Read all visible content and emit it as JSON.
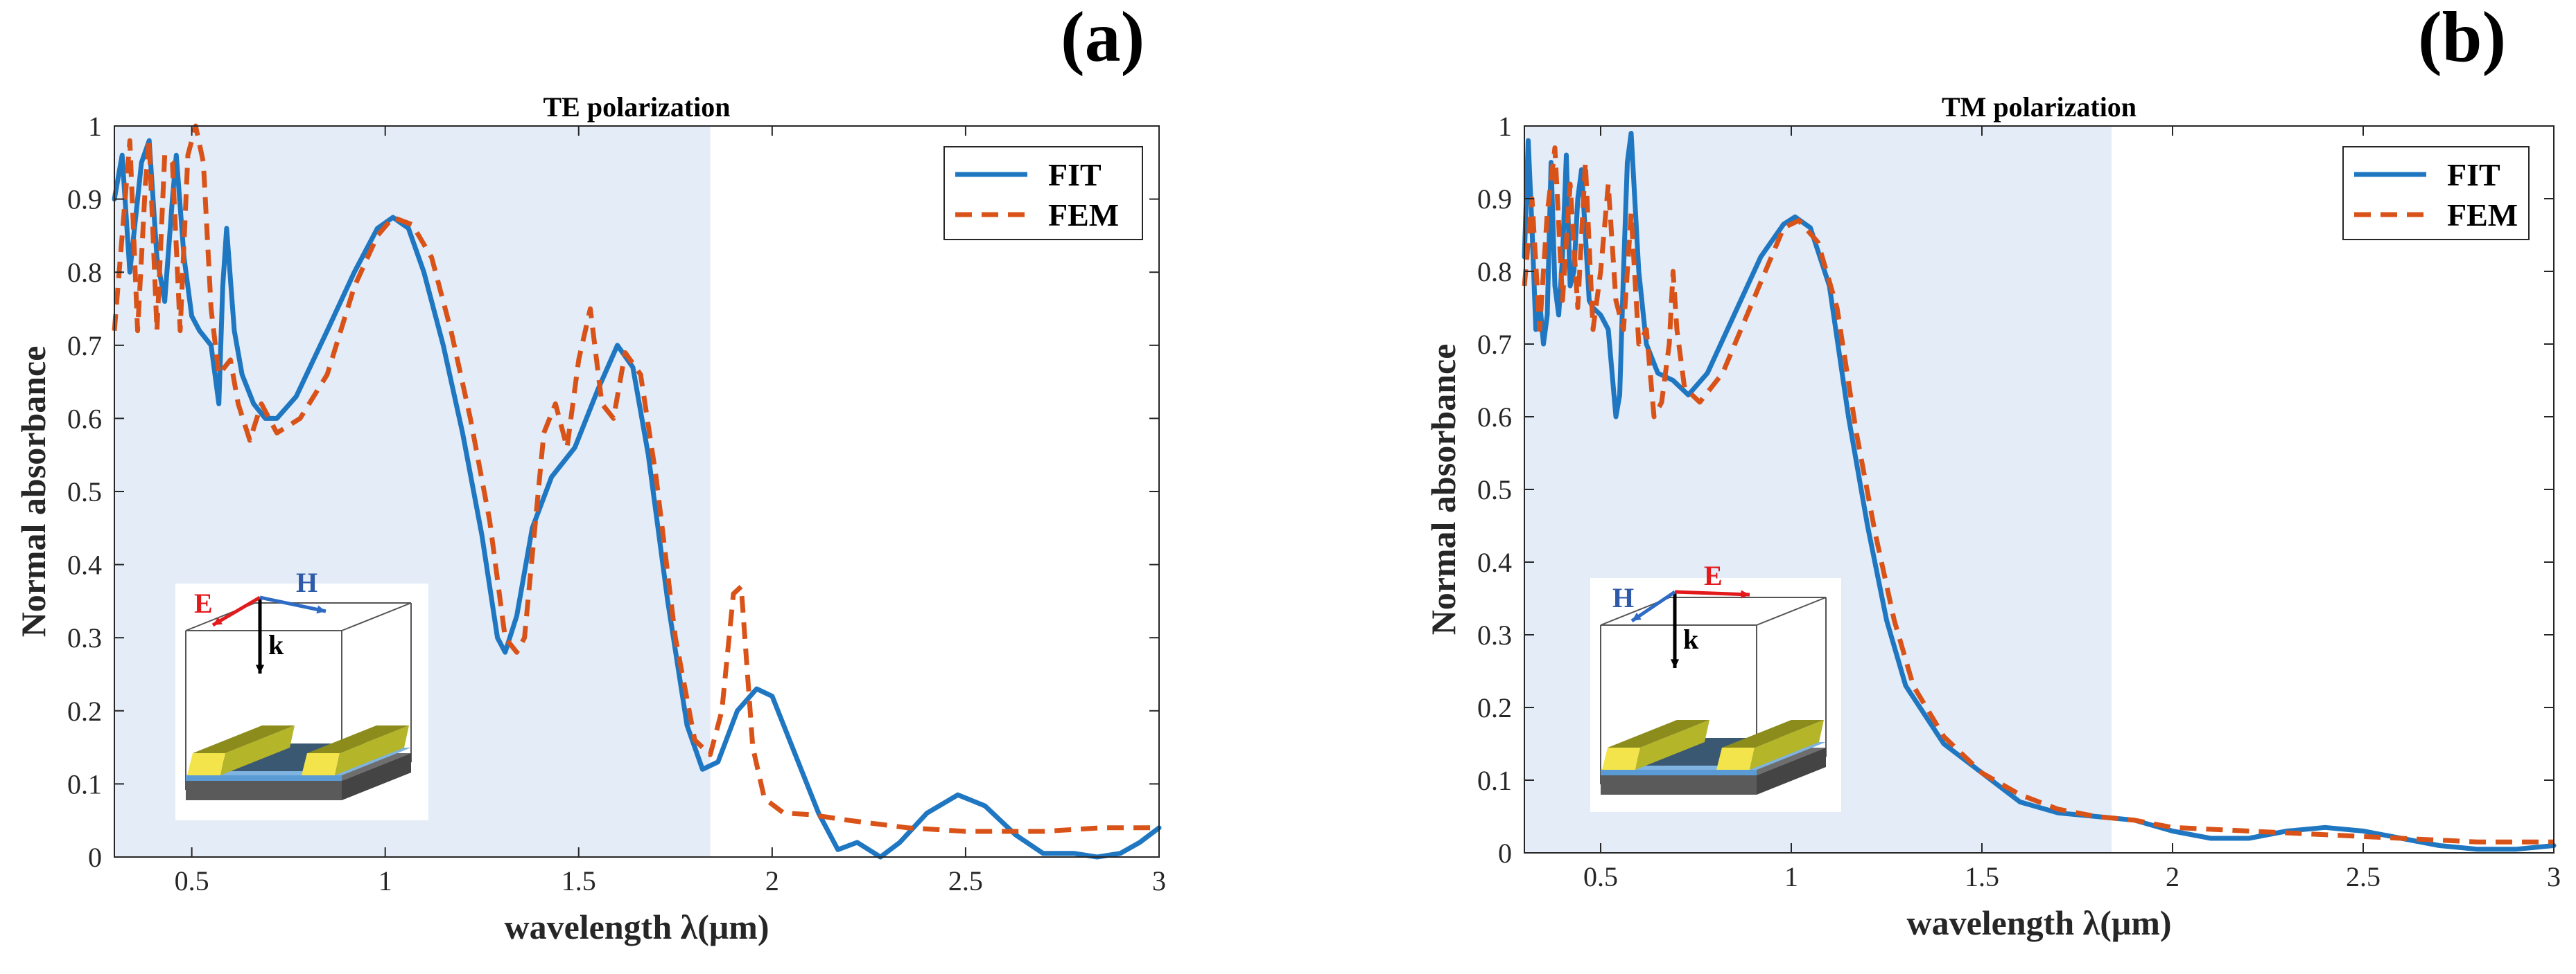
{
  "chart_data": [
    {
      "type": "line",
      "panel_label": "(a)",
      "title": "TE polarization",
      "xlabel": "wavelength λ(μm)",
      "ylabel": "Normal absorbance",
      "xlim": [
        0.3,
        3.0
      ],
      "ylim": [
        0,
        1
      ],
      "xticks": [
        0.5,
        1,
        1.5,
        2,
        2.5,
        3
      ],
      "xtick_labels": [
        "0.5",
        "1",
        "1.5",
        "2",
        "2.5",
        "3"
      ],
      "yticks": [
        0,
        0.1,
        0.2,
        0.3,
        0.4,
        0.5,
        0.6,
        0.7,
        0.8,
        0.9,
        1
      ],
      "ytick_labels": [
        "0",
        "0.1",
        "0.2",
        "0.3",
        "0.4",
        "0.5",
        "0.6",
        "0.7",
        "0.8",
        "0.9",
        "1"
      ],
      "shaded_region": [
        0.3,
        1.84
      ],
      "legend": {
        "position": "top-right"
      },
      "inset": {
        "labels": [
          "E",
          "H",
          "k"
        ]
      },
      "series": [
        {
          "name": "FIT",
          "color": "#1f77c2",
          "style": "solid",
          "points": [
            [
              0.3,
              0.9
            ],
            [
              0.32,
              0.96
            ],
            [
              0.34,
              0.8
            ],
            [
              0.37,
              0.95
            ],
            [
              0.39,
              0.98
            ],
            [
              0.41,
              0.82
            ],
            [
              0.43,
              0.76
            ],
            [
              0.45,
              0.9
            ],
            [
              0.46,
              0.96
            ],
            [
              0.48,
              0.82
            ],
            [
              0.5,
              0.74
            ],
            [
              0.52,
              0.72
            ],
            [
              0.55,
              0.7
            ],
            [
              0.57,
              0.62
            ],
            [
              0.58,
              0.78
            ],
            [
              0.59,
              0.86
            ],
            [
              0.61,
              0.72
            ],
            [
              0.63,
              0.66
            ],
            [
              0.66,
              0.62
            ],
            [
              0.69,
              0.6
            ],
            [
              0.72,
              0.6
            ],
            [
              0.77,
              0.63
            ],
            [
              0.85,
              0.72
            ],
            [
              0.92,
              0.8
            ],
            [
              0.98,
              0.86
            ],
            [
              1.02,
              0.875
            ],
            [
              1.06,
              0.86
            ],
            [
              1.1,
              0.8
            ],
            [
              1.15,
              0.7
            ],
            [
              1.2,
              0.58
            ],
            [
              1.25,
              0.44
            ],
            [
              1.29,
              0.3
            ],
            [
              1.31,
              0.28
            ],
            [
              1.34,
              0.33
            ],
            [
              1.38,
              0.45
            ],
            [
              1.43,
              0.52
            ],
            [
              1.49,
              0.56
            ],
            [
              1.55,
              0.64
            ],
            [
              1.6,
              0.7
            ],
            [
              1.64,
              0.67
            ],
            [
              1.68,
              0.55
            ],
            [
              1.73,
              0.35
            ],
            [
              1.78,
              0.18
            ],
            [
              1.82,
              0.12
            ],
            [
              1.86,
              0.13
            ],
            [
              1.91,
              0.2
            ],
            [
              1.96,
              0.23
            ],
            [
              2.0,
              0.22
            ],
            [
              2.06,
              0.14
            ],
            [
              2.12,
              0.06
            ],
            [
              2.17,
              0.01
            ],
            [
              2.22,
              0.02
            ],
            [
              2.28,
              0.0
            ],
            [
              2.33,
              0.02
            ],
            [
              2.4,
              0.06
            ],
            [
              2.48,
              0.085
            ],
            [
              2.55,
              0.07
            ],
            [
              2.63,
              0.03
            ],
            [
              2.7,
              0.005
            ],
            [
              2.78,
              0.005
            ],
            [
              2.84,
              0.0
            ],
            [
              2.9,
              0.005
            ],
            [
              2.95,
              0.02
            ],
            [
              3.0,
              0.04
            ]
          ]
        },
        {
          "name": "FEM",
          "color": "#d95319",
          "style": "dashed",
          "points": [
            [
              0.3,
              0.72
            ],
            [
              0.32,
              0.85
            ],
            [
              0.34,
              0.98
            ],
            [
              0.36,
              0.72
            ],
            [
              0.38,
              0.92
            ],
            [
              0.39,
              0.98
            ],
            [
              0.41,
              0.72
            ],
            [
              0.43,
              0.96
            ],
            [
              0.45,
              0.95
            ],
            [
              0.47,
              0.72
            ],
            [
              0.49,
              0.96
            ],
            [
              0.51,
              1.0
            ],
            [
              0.53,
              0.95
            ],
            [
              0.55,
              0.75
            ],
            [
              0.57,
              0.66
            ],
            [
              0.6,
              0.68
            ],
            [
              0.62,
              0.62
            ],
            [
              0.65,
              0.57
            ],
            [
              0.68,
              0.62
            ],
            [
              0.72,
              0.58
            ],
            [
              0.78,
              0.6
            ],
            [
              0.85,
              0.66
            ],
            [
              0.92,
              0.78
            ],
            [
              0.98,
              0.85
            ],
            [
              1.02,
              0.875
            ],
            [
              1.07,
              0.865
            ],
            [
              1.12,
              0.82
            ],
            [
              1.17,
              0.72
            ],
            [
              1.22,
              0.6
            ],
            [
              1.27,
              0.46
            ],
            [
              1.31,
              0.3
            ],
            [
              1.34,
              0.28
            ],
            [
              1.36,
              0.3
            ],
            [
              1.41,
              0.58
            ],
            [
              1.44,
              0.62
            ],
            [
              1.47,
              0.56
            ],
            [
              1.5,
              0.68
            ],
            [
              1.53,
              0.75
            ],
            [
              1.56,
              0.62
            ],
            [
              1.59,
              0.6
            ],
            [
              1.62,
              0.69
            ],
            [
              1.66,
              0.66
            ],
            [
              1.7,
              0.52
            ],
            [
              1.75,
              0.3
            ],
            [
              1.8,
              0.16
            ],
            [
              1.84,
              0.14
            ],
            [
              1.87,
              0.2
            ],
            [
              1.9,
              0.36
            ],
            [
              1.92,
              0.37
            ],
            [
              1.95,
              0.15
            ],
            [
              1.98,
              0.08
            ],
            [
              2.03,
              0.06
            ],
            [
              2.1,
              0.058
            ],
            [
              2.2,
              0.05
            ],
            [
              2.35,
              0.04
            ],
            [
              2.5,
              0.035
            ],
            [
              2.7,
              0.035
            ],
            [
              2.85,
              0.04
            ],
            [
              3.0,
              0.04
            ]
          ]
        }
      ]
    },
    {
      "type": "line",
      "panel_label": "(b)",
      "title": "TM polarization",
      "xlabel": "wavelength λ(μm)",
      "ylabel": "Normal absorbance",
      "xlim": [
        0.3,
        3.0
      ],
      "ylim": [
        0,
        1
      ],
      "xticks": [
        0.5,
        1,
        1.5,
        2,
        2.5,
        3
      ],
      "xtick_labels": [
        "0.5",
        "1",
        "1.5",
        "2",
        "2.5",
        "3"
      ],
      "yticks": [
        0,
        0.1,
        0.2,
        0.3,
        0.4,
        0.5,
        0.6,
        0.7,
        0.8,
        0.9,
        1
      ],
      "ytick_labels": [
        "0",
        "0.1",
        "0.2",
        "0.3",
        "0.4",
        "0.5",
        "0.6",
        "0.7",
        "0.8",
        "0.9",
        "1"
      ],
      "shaded_region": [
        0.3,
        1.84
      ],
      "legend": {
        "position": "top-right"
      },
      "inset": {
        "labels": [
          "H",
          "E",
          "k"
        ]
      },
      "series": [
        {
          "name": "FIT",
          "color": "#1f77c2",
          "style": "solid",
          "points": [
            [
              0.3,
              0.82
            ],
            [
              0.31,
              0.98
            ],
            [
              0.32,
              0.86
            ],
            [
              0.33,
              0.72
            ],
            [
              0.34,
              0.76
            ],
            [
              0.35,
              0.7
            ],
            [
              0.36,
              0.74
            ],
            [
              0.37,
              0.95
            ],
            [
              0.38,
              0.78
            ],
            [
              0.39,
              0.74
            ],
            [
              0.4,
              0.82
            ],
            [
              0.41,
              0.96
            ],
            [
              0.42,
              0.78
            ],
            [
              0.43,
              0.8
            ],
            [
              0.44,
              0.9
            ],
            [
              0.45,
              0.94
            ],
            [
              0.46,
              0.85
            ],
            [
              0.47,
              0.76
            ],
            [
              0.48,
              0.75
            ],
            [
              0.5,
              0.74
            ],
            [
              0.52,
              0.72
            ],
            [
              0.53,
              0.66
            ],
            [
              0.54,
              0.6
            ],
            [
              0.55,
              0.63
            ],
            [
              0.56,
              0.8
            ],
            [
              0.57,
              0.95
            ],
            [
              0.58,
              0.99
            ],
            [
              0.6,
              0.8
            ],
            [
              0.62,
              0.7
            ],
            [
              0.65,
              0.66
            ],
            [
              0.69,
              0.65
            ],
            [
              0.73,
              0.63
            ],
            [
              0.78,
              0.66
            ],
            [
              0.85,
              0.74
            ],
            [
              0.92,
              0.82
            ],
            [
              0.98,
              0.865
            ],
            [
              1.01,
              0.875
            ],
            [
              1.05,
              0.86
            ],
            [
              1.1,
              0.78
            ],
            [
              1.15,
              0.6
            ],
            [
              1.2,
              0.45
            ],
            [
              1.25,
              0.32
            ],
            [
              1.3,
              0.23
            ],
            [
              1.4,
              0.15
            ],
            [
              1.5,
              0.11
            ],
            [
              1.6,
              0.07
            ],
            [
              1.7,
              0.055
            ],
            [
              1.8,
              0.05
            ],
            [
              1.9,
              0.045
            ],
            [
              2.0,
              0.03
            ],
            [
              2.1,
              0.02
            ],
            [
              2.2,
              0.02
            ],
            [
              2.3,
              0.03
            ],
            [
              2.4,
              0.035
            ],
            [
              2.5,
              0.03
            ],
            [
              2.6,
              0.02
            ],
            [
              2.7,
              0.01
            ],
            [
              2.8,
              0.005
            ],
            [
              2.9,
              0.005
            ],
            [
              3.0,
              0.01
            ]
          ]
        },
        {
          "name": "FEM",
          "color": "#d95319",
          "style": "dashed",
          "points": [
            [
              0.3,
              0.78
            ],
            [
              0.32,
              0.9
            ],
            [
              0.34,
              0.72
            ],
            [
              0.36,
              0.88
            ],
            [
              0.38,
              0.97
            ],
            [
              0.4,
              0.76
            ],
            [
              0.42,
              0.92
            ],
            [
              0.44,
              0.75
            ],
            [
              0.46,
              0.95
            ],
            [
              0.48,
              0.72
            ],
            [
              0.5,
              0.8
            ],
            [
              0.52,
              0.92
            ],
            [
              0.54,
              0.76
            ],
            [
              0.56,
              0.72
            ],
            [
              0.58,
              0.88
            ],
            [
              0.6,
              0.7
            ],
            [
              0.62,
              0.72
            ],
            [
              0.64,
              0.6
            ],
            [
              0.66,
              0.62
            ],
            [
              0.68,
              0.7
            ],
            [
              0.69,
              0.8
            ],
            [
              0.7,
              0.72
            ],
            [
              0.72,
              0.64
            ],
            [
              0.76,
              0.62
            ],
            [
              0.82,
              0.66
            ],
            [
              0.9,
              0.76
            ],
            [
              0.98,
              0.86
            ],
            [
              1.02,
              0.87
            ],
            [
              1.07,
              0.84
            ],
            [
              1.12,
              0.75
            ],
            [
              1.17,
              0.58
            ],
            [
              1.22,
              0.44
            ],
            [
              1.27,
              0.32
            ],
            [
              1.32,
              0.23
            ],
            [
              1.4,
              0.16
            ],
            [
              1.5,
              0.11
            ],
            [
              1.6,
              0.08
            ],
            [
              1.7,
              0.06
            ],
            [
              1.8,
              0.05
            ],
            [
              1.9,
              0.045
            ],
            [
              2.0,
              0.035
            ],
            [
              2.2,
              0.03
            ],
            [
              2.4,
              0.025
            ],
            [
              2.6,
              0.02
            ],
            [
              2.8,
              0.015
            ],
            [
              3.0,
              0.015
            ]
          ]
        }
      ]
    }
  ]
}
